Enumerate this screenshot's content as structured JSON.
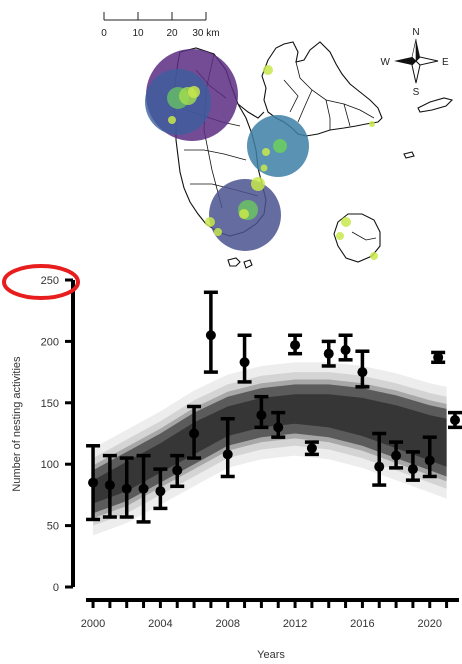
{
  "map": {
    "scale_bar": {
      "labels": [
        "0",
        "10",
        "20",
        "30 km"
      ]
    },
    "compass": {
      "n": "N",
      "s": "S",
      "e": "E",
      "w": "W"
    },
    "buffers": [
      {
        "name": "northwest",
        "color": "#5b2d83",
        "cluster": "#3c5f9e"
      },
      {
        "name": "east",
        "color": "#3d7fa6"
      },
      {
        "name": "south",
        "color": "#4a548f"
      }
    ],
    "site_color": "#c8e84a",
    "highlight_color": "#e81e1e"
  },
  "chart_data": {
    "type": "scatter",
    "xlabel": "Years",
    "ylabel": "Number of nesting activities",
    "xlim": [
      1999.7,
      2021.5
    ],
    "ylim": [
      0,
      250
    ],
    "x_ticks": [
      2000,
      2004,
      2008,
      2012,
      2016,
      2020
    ],
    "y_ticks": [
      0,
      50,
      100,
      150,
      200,
      250
    ],
    "highlighted_tick": "250",
    "band": {
      "x": [
        2000,
        2002,
        2004,
        2006,
        2008,
        2010,
        2012,
        2014,
        2016,
        2018,
        2020,
        2021
      ],
      "lower": [
        60,
        70,
        85,
        100,
        115,
        122,
        125,
        122,
        115,
        105,
        95,
        90
      ],
      "upper": [
        95,
        110,
        125,
        142,
        155,
        162,
        165,
        165,
        162,
        156,
        148,
        145
      ]
    },
    "points": [
      {
        "year": 2000,
        "mean": 85,
        "low": 55,
        "high": 115
      },
      {
        "year": 2001,
        "mean": 83,
        "low": 57,
        "high": 107
      },
      {
        "year": 2002,
        "mean": 80,
        "low": 57,
        "high": 105
      },
      {
        "year": 2003,
        "mean": 80,
        "low": 53,
        "high": 107
      },
      {
        "year": 2004,
        "mean": 78,
        "low": 64,
        "high": 96
      },
      {
        "year": 2005,
        "mean": 95,
        "low": 82,
        "high": 107
      },
      {
        "year": 2006,
        "mean": 125,
        "low": 105,
        "high": 147
      },
      {
        "year": 2007,
        "mean": 205,
        "low": 175,
        "high": 240
      },
      {
        "year": 2008,
        "mean": 108,
        "low": 90,
        "high": 137
      },
      {
        "year": 2009,
        "mean": 183,
        "low": 167,
        "high": 205
      },
      {
        "year": 2010,
        "mean": 140,
        "low": 130,
        "high": 155
      },
      {
        "year": 2011,
        "mean": 130,
        "low": 122,
        "high": 142
      },
      {
        "year": 2012,
        "mean": 197,
        "low": 190,
        "high": 205
      },
      {
        "year": 2013,
        "mean": 113,
        "low": 108,
        "high": 118
      },
      {
        "year": 2014,
        "mean": 190,
        "low": 180,
        "high": 200
      },
      {
        "year": 2015,
        "mean": 193,
        "low": 185,
        "high": 205
      },
      {
        "year": 2016,
        "mean": 175,
        "low": 163,
        "high": 192
      },
      {
        "year": 2017,
        "mean": 98,
        "low": 83,
        "high": 125
      },
      {
        "year": 2018,
        "mean": 107,
        "low": 97,
        "high": 118
      },
      {
        "year": 2019,
        "mean": 96,
        "low": 87,
        "high": 110
      },
      {
        "year": 2020,
        "mean": 103,
        "low": 90,
        "high": 122
      },
      {
        "year": 2020.5,
        "mean": 187,
        "low": 183,
        "high": 191
      },
      {
        "year": 2021.5,
        "mean": 136,
        "low": 130,
        "high": 142
      }
    ]
  }
}
